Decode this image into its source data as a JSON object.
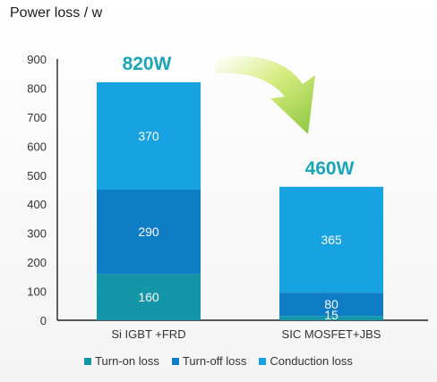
{
  "header": {
    "title": "Power loss / w"
  },
  "chart_data": {
    "type": "bar",
    "stacked": true,
    "categories": [
      "Si IGBT +FRD",
      "SIC MOSFET+JBS"
    ],
    "series": [
      {
        "name": "Turn-on loss",
        "values": [
          160,
          15
        ],
        "color": "#1496a8"
      },
      {
        "name": "Turn-off loss",
        "values": [
          290,
          80
        ],
        "color": "#0f7cc6"
      },
      {
        "name": "Conduction loss",
        "values": [
          370,
          365
        ],
        "color": "#17a3e2"
      }
    ],
    "totals": [
      "820W",
      "460W"
    ],
    "ylim": [
      0,
      900
    ],
    "yticks": [
      0,
      100,
      200,
      300,
      400,
      500,
      600,
      700,
      800,
      900
    ],
    "legend_position": "bottom",
    "grid": false,
    "annotation": "curved arrow from first bar total to second bar total"
  }
}
